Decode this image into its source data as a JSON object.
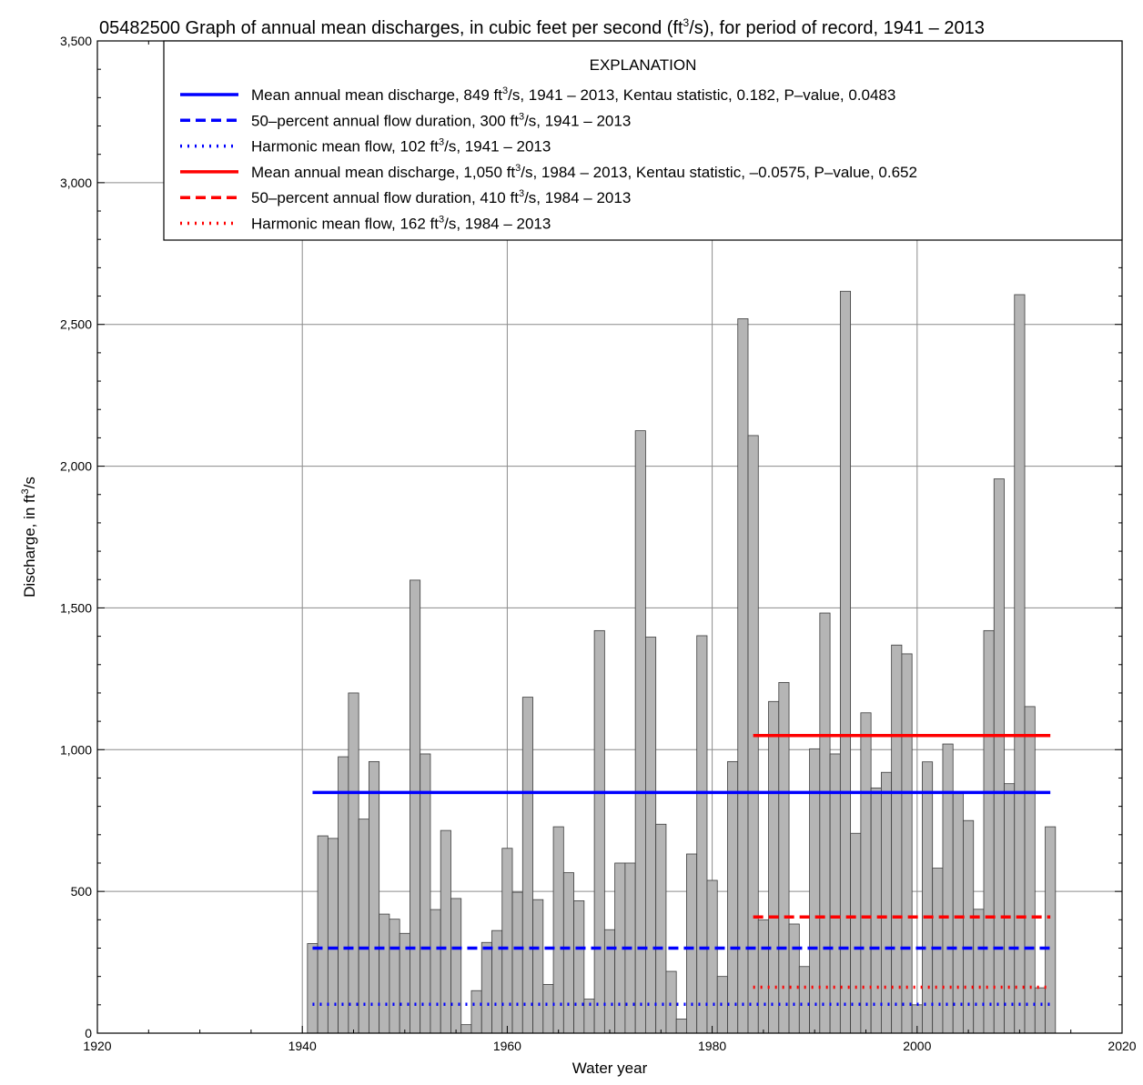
{
  "chart_data": {
    "type": "bar",
    "title_prefix": "05482500 Graph of annual mean discharges, in cubic feet per second (ft",
    "title_sup": "3",
    "title_suffix": "/s), for period of record, 1941 – 2013",
    "xlabel": "Water year",
    "ylabel_prefix": "Discharge, in ft",
    "ylabel_sup": "3",
    "ylabel_suffix": "/s",
    "xlim": [
      1920,
      2020
    ],
    "ylim": [
      0,
      3500
    ],
    "x_ticks": [
      1920,
      1940,
      1960,
      1980,
      2000,
      2020
    ],
    "x_tick_labels": [
      "1920",
      "1940",
      "1960",
      "1980",
      "2000",
      "2020"
    ],
    "y_ticks": [
      0,
      500,
      1000,
      1500,
      2000,
      2500,
      3000,
      3500
    ],
    "y_tick_labels": [
      "0",
      "500",
      "1,000",
      "1,500",
      "2,000",
      "2,500",
      "3,000",
      "3,500"
    ],
    "grid": true,
    "bar_color": "#b5b5b5",
    "years": [
      1941,
      1942,
      1943,
      1944,
      1945,
      1946,
      1947,
      1948,
      1949,
      1950,
      1951,
      1952,
      1953,
      1954,
      1955,
      1956,
      1957,
      1958,
      1959,
      1960,
      1961,
      1962,
      1963,
      1964,
      1965,
      1966,
      1967,
      1968,
      1969,
      1970,
      1971,
      1972,
      1973,
      1974,
      1975,
      1976,
      1977,
      1978,
      1979,
      1980,
      1981,
      1982,
      1983,
      1984,
      1985,
      1986,
      1987,
      1988,
      1989,
      1990,
      1991,
      1992,
      1993,
      1994,
      1995,
      1996,
      1997,
      1998,
      1999,
      2000,
      2001,
      2002,
      2003,
      2004,
      2005,
      2006,
      2007,
      2008,
      2009,
      2010,
      2011,
      2012,
      2013
    ],
    "values": [
      316,
      696,
      687,
      975,
      1200,
      755,
      958,
      420,
      402,
      352,
      1598,
      985,
      436,
      715,
      475,
      30,
      150,
      320,
      362,
      652,
      497,
      1185,
      471,
      172,
      728,
      566,
      467,
      120,
      1420,
      365,
      600,
      600,
      2125,
      1397,
      737,
      218,
      50,
      632,
      1402,
      539,
      200,
      958,
      2520,
      2108,
      400,
      1170,
      1237,
      385,
      235,
      1003,
      1482,
      985,
      2617,
      705,
      1130,
      865,
      920,
      1369,
      1338,
      100,
      957,
      582,
      1020,
      850,
      750,
      437,
      1420,
      1955,
      880,
      2605,
      1152,
      160,
      728
    ],
    "reference_lines": [
      {
        "label_prefix": "Mean annual mean discharge, 849 ft",
        "label_suffix": "/s, 1941 – 2013, Kentau statistic, 0.182, P–value, 0.0483",
        "value": 849,
        "start": 1941,
        "end": 2013,
        "color": "#0000ff",
        "style": "solid"
      },
      {
        "label_prefix": "50–percent annual flow duration, 300 ft",
        "label_suffix": "/s, 1941 – 2013",
        "value": 300,
        "start": 1941,
        "end": 2013,
        "color": "#0000ff",
        "style": "dashed"
      },
      {
        "label_prefix": "Harmonic mean flow, 102 ft",
        "label_suffix": "/s, 1941 – 2013",
        "value": 102,
        "start": 1941,
        "end": 2013,
        "color": "#0000ff",
        "style": "dotted"
      },
      {
        "label_prefix": "Mean annual mean discharge, 1,050 ft",
        "label_suffix": "/s, 1984 – 2013, Kentau statistic, –0.0575, P–value, 0.652",
        "value": 1050,
        "start": 1984,
        "end": 2013,
        "color": "#ff0000",
        "style": "solid"
      },
      {
        "label_prefix": "50–percent annual flow duration, 410 ft",
        "label_suffix": "/s, 1984 – 2013",
        "value": 410,
        "start": 1984,
        "end": 2013,
        "color": "#ff0000",
        "style": "dashed"
      },
      {
        "label_prefix": "Harmonic mean flow, 162 ft",
        "label_suffix": "/s, 1984 – 2013",
        "value": 162,
        "start": 1984,
        "end": 2013,
        "color": "#ff0000",
        "style": "dotted"
      }
    ],
    "legend": {
      "title": "EXPLANATION",
      "placement": "top-right",
      "sup": "3"
    }
  }
}
